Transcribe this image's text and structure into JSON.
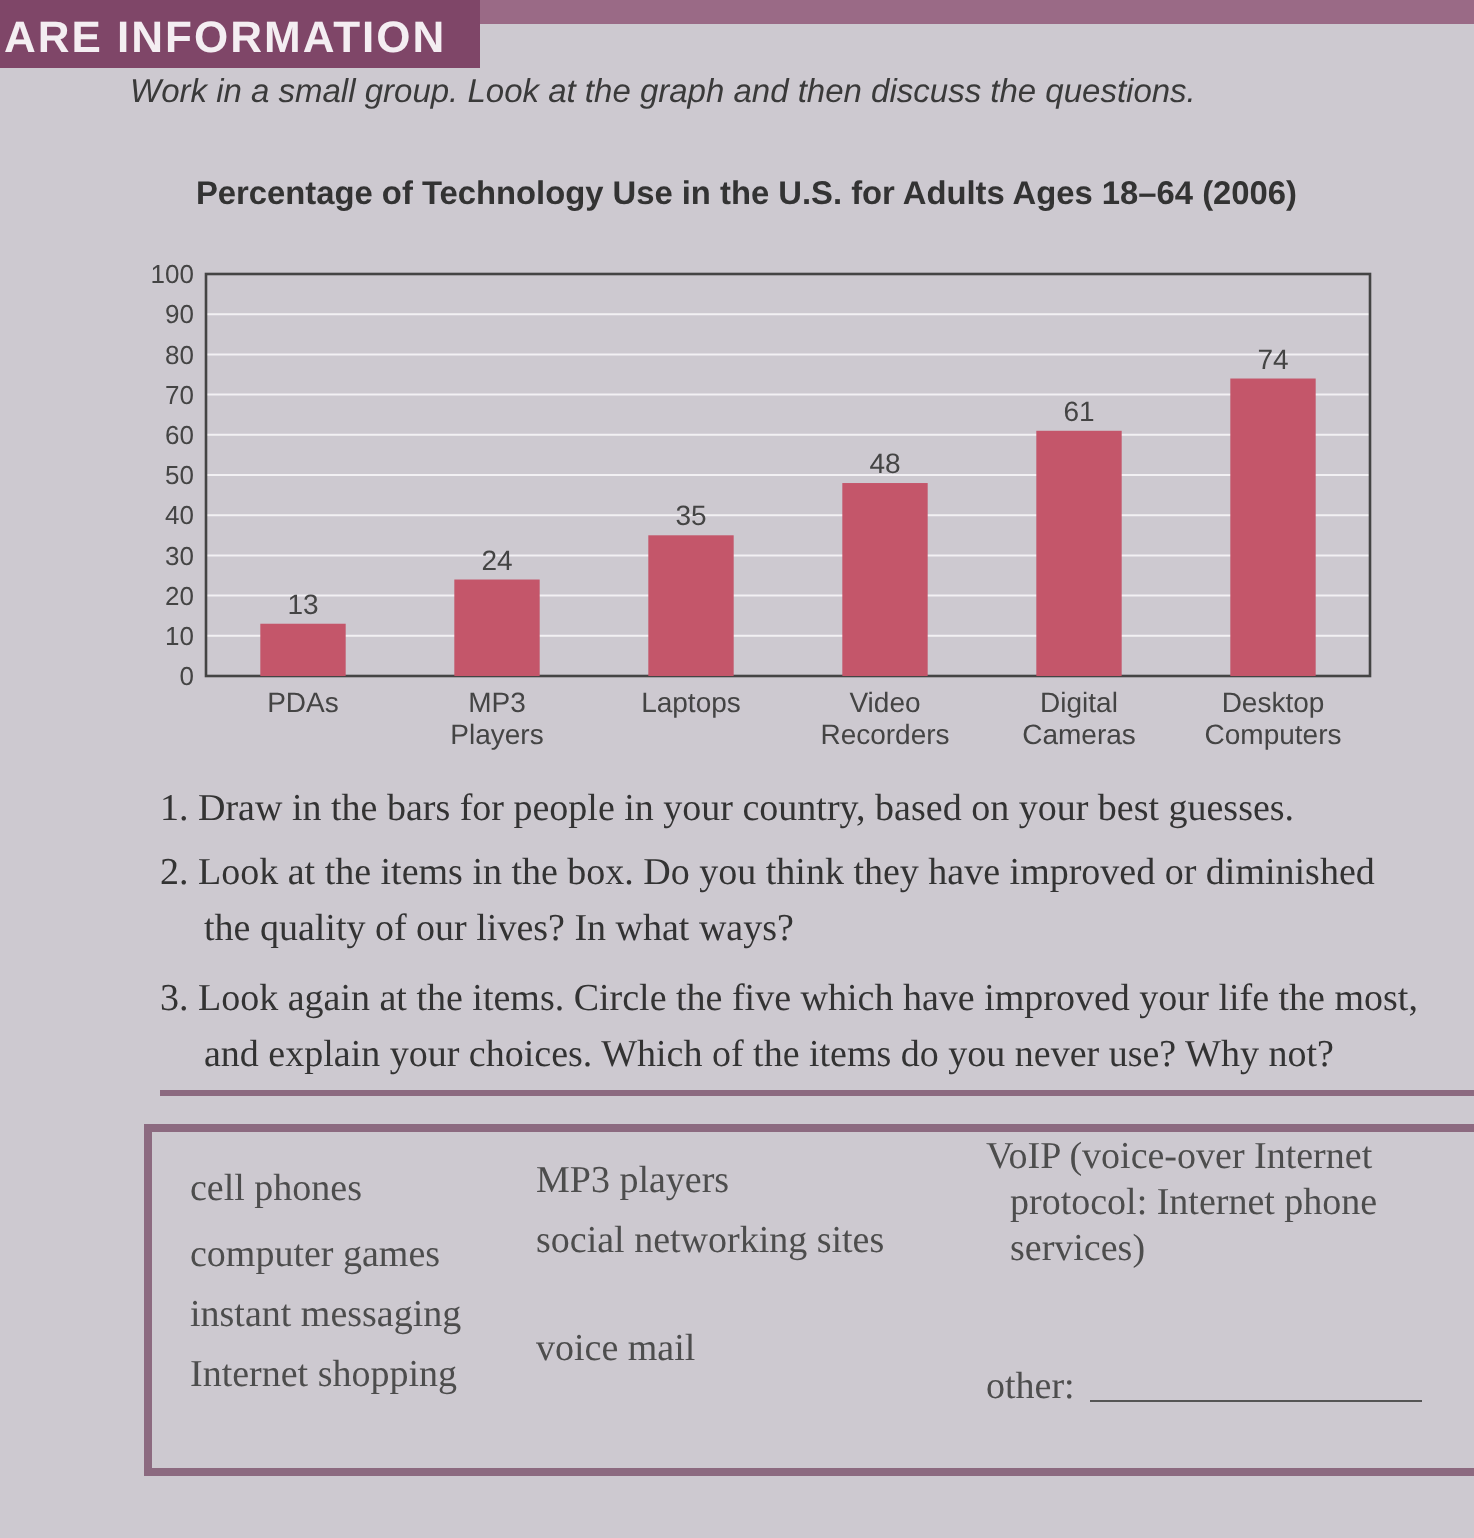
{
  "chart_data": {
    "type": "bar",
    "title": "Percentage of Technology Use in the U.S. for Adults Ages 18–64 (2006)",
    "categories": [
      "PDAs",
      "MP3 Players",
      "Laptops",
      "Video Recorders",
      "Digital Cameras",
      "Desktop Computers"
    ],
    "values": [
      13,
      24,
      35,
      48,
      61,
      74
    ],
    "color": "#c4566a",
    "ylim": [
      0,
      100
    ],
    "yticks": [
      0,
      10,
      20,
      30,
      40,
      50,
      60,
      70,
      80,
      90,
      100
    ],
    "grid": "y",
    "data_labels": true,
    "annotations": [
      "ARE INFORMATION",
      "Work in a small group. Look at the graph and then discuss the questions.",
      "1. Draw in the bars for people in your country, based on your best guesses.",
      "2. Look at the items in the box. Do you think they have improved or diminished the quality of our lives? In what ways?",
      "3. Look again at the items. Circle the five which have improved your life the most, and explain your choices. Which of the items do you never use? Why not?",
      "cell phones",
      "computer games",
      "instant messaging",
      "Internet shopping",
      "MP3 players",
      "social networking sites",
      "voice mail",
      "VoIP (voice-over Internet protocol: Internet phone services)",
      "other:"
    ]
  }
}
